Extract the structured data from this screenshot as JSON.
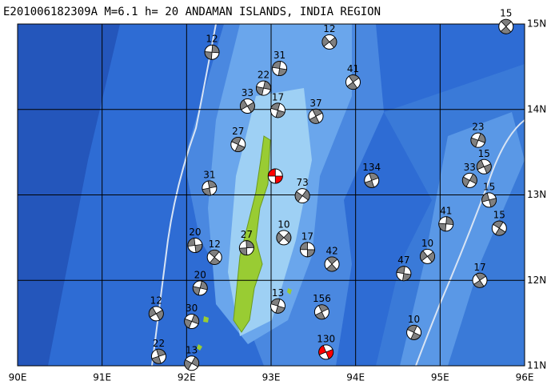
{
  "title": "E201006182309A M=6.1 h= 20 ANDAMAN ISLANDS, INDIA REGION",
  "map": {
    "xlim": [
      90,
      96
    ],
    "ylim": [
      11,
      15
    ],
    "xticks": [
      {
        "value": 90,
        "label": "90E"
      },
      {
        "value": 91,
        "label": "91E"
      },
      {
        "value": 92,
        "label": "92E"
      },
      {
        "value": 93,
        "label": "93E"
      },
      {
        "value": 94,
        "label": "94E"
      },
      {
        "value": 95,
        "label": "95E"
      },
      {
        "value": 96,
        "label": "96E"
      }
    ],
    "yticks": [
      {
        "value": 11,
        "label": "11N"
      },
      {
        "value": 12,
        "label": "12N"
      },
      {
        "value": 13,
        "label": "13N"
      },
      {
        "value": 14,
        "label": "14N"
      },
      {
        "value": 15,
        "label": "15N"
      }
    ],
    "grid": true,
    "events": [
      {
        "lon": 93.05,
        "lat": 13.22,
        "color": "#ff0000"
      },
      {
        "lon": 95.78,
        "lat": 14.97,
        "depth": 15,
        "color": "#808080"
      },
      {
        "lon": 92.3,
        "lat": 14.67,
        "depth": 12,
        "color": "#808080"
      },
      {
        "lon": 93.69,
        "lat": 14.79,
        "depth": 12,
        "color": "#808080"
      },
      {
        "lon": 93.1,
        "lat": 14.48,
        "depth": 31,
        "color": "#808080"
      },
      {
        "lon": 93.97,
        "lat": 14.32,
        "depth": 41,
        "color": "#808080"
      },
      {
        "lon": 92.91,
        "lat": 14.25,
        "depth": 22,
        "color": "#808080"
      },
      {
        "lon": 92.72,
        "lat": 14.04,
        "depth": 33,
        "color": "#808080"
      },
      {
        "lon": 93.08,
        "lat": 13.99,
        "depth": 17,
        "color": "#808080"
      },
      {
        "lon": 93.53,
        "lat": 13.92,
        "depth": 37,
        "color": "#808080"
      },
      {
        "lon": 95.45,
        "lat": 13.64,
        "depth": 23,
        "color": "#808080"
      },
      {
        "lon": 95.52,
        "lat": 13.33,
        "depth": 15,
        "color": "#808080"
      },
      {
        "lon": 92.61,
        "lat": 13.59,
        "depth": 27,
        "color": "#808080"
      },
      {
        "lon": 94.19,
        "lat": 13.17,
        "depth": 134,
        "color": "#808080"
      },
      {
        "lon": 95.35,
        "lat": 13.17,
        "depth": 33,
        "color": "#808080"
      },
      {
        "lon": 95.58,
        "lat": 12.94,
        "depth": 15,
        "color": "#808080"
      },
      {
        "lon": 95.7,
        "lat": 12.61,
        "depth": 15,
        "color": "#808080"
      },
      {
        "lon": 92.27,
        "lat": 13.08,
        "depth": 31,
        "color": "#808080"
      },
      {
        "lon": 93.37,
        "lat": 12.99,
        "depth": 73,
        "color": "#808080"
      },
      {
        "lon": 92.1,
        "lat": 12.41,
        "depth": 20,
        "color": "#808080"
      },
      {
        "lon": 92.33,
        "lat": 12.27,
        "depth": 12,
        "color": "#808080"
      },
      {
        "lon": 92.71,
        "lat": 12.38,
        "depth": 27,
        "color": "#808080"
      },
      {
        "lon": 93.15,
        "lat": 12.5,
        "depth": 10,
        "color": "#808080"
      },
      {
        "lon": 93.43,
        "lat": 12.36,
        "depth": 17,
        "color": "#808080"
      },
      {
        "lon": 93.72,
        "lat": 12.19,
        "depth": 42,
        "color": "#808080"
      },
      {
        "lon": 95.07,
        "lat": 12.66,
        "depth": 41,
        "color": "#808080"
      },
      {
        "lon": 94.85,
        "lat": 12.28,
        "depth": 10,
        "color": "#808080"
      },
      {
        "lon": 94.57,
        "lat": 12.08,
        "depth": 47,
        "color": "#808080"
      },
      {
        "lon": 95.47,
        "lat": 12.0,
        "depth": 17,
        "color": "#808080"
      },
      {
        "lon": 92.16,
        "lat": 11.91,
        "depth": 20,
        "color": "#808080"
      },
      {
        "lon": 91.64,
        "lat": 11.61,
        "depth": 12,
        "color": "#808080"
      },
      {
        "lon": 93.08,
        "lat": 11.7,
        "depth": 13,
        "color": "#808080"
      },
      {
        "lon": 93.6,
        "lat": 11.63,
        "depth": 156,
        "color": "#808080"
      },
      {
        "lon": 92.06,
        "lat": 11.52,
        "depth": 30,
        "color": "#808080"
      },
      {
        "lon": 93.65,
        "lat": 11.16,
        "depth": 130,
        "color": "#ff0000"
      },
      {
        "lon": 94.69,
        "lat": 11.39,
        "depth": 10,
        "color": "#808080"
      },
      {
        "lon": 91.67,
        "lat": 11.11,
        "depth": 22,
        "color": "#808080"
      },
      {
        "lon": 92.06,
        "lat": 11.03,
        "depth": 13,
        "color": "#808080"
      }
    ]
  }
}
